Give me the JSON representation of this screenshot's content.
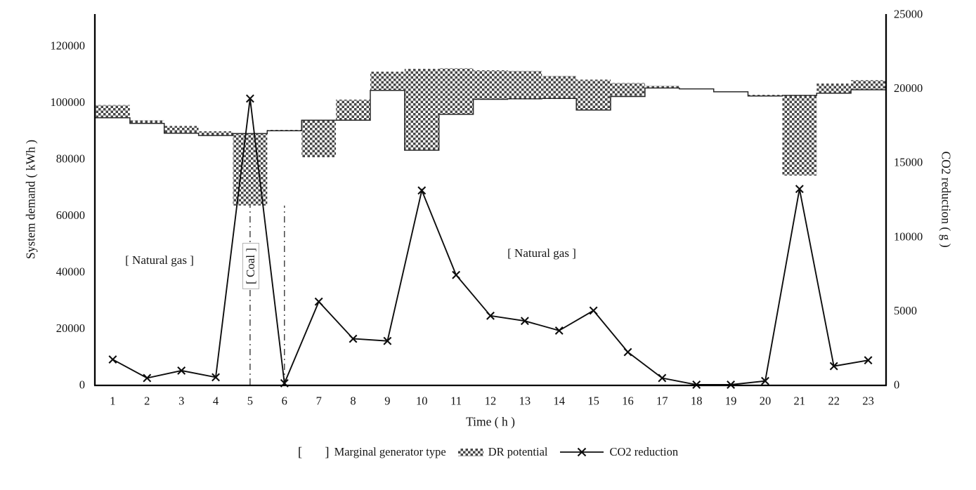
{
  "figure": {
    "background": "#ffffff",
    "ink_color": "#111111",
    "checker_color": "#474747"
  },
  "legend": {
    "bracket_open": "[",
    "bracket_close": "]",
    "items": [
      {
        "label": "Marginal generator type",
        "swatch": "brackets"
      },
      {
        "label": "DR potential",
        "swatch": "checker"
      },
      {
        "label": "CO2 reduction",
        "swatch": "line-x"
      }
    ]
  },
  "chart_data": {
    "type": "combo",
    "x": [
      1,
      2,
      3,
      4,
      5,
      6,
      7,
      8,
      9,
      10,
      11,
      12,
      13,
      14,
      15,
      16,
      17,
      18,
      19,
      20,
      21,
      22,
      23
    ],
    "x_axis": {
      "label": "Time ( h )",
      "ticks": [
        1,
        2,
        3,
        4,
        5,
        6,
        7,
        8,
        9,
        10,
        11,
        12,
        13,
        14,
        15,
        16,
        17,
        18,
        19,
        20,
        21,
        22,
        23
      ]
    },
    "left_axis": {
      "label": "System demand ( kWh )",
      "ticks": [
        0,
        20000,
        40000,
        60000,
        80000,
        100000,
        120000
      ],
      "range": [
        0,
        131200
      ],
      "grid": false
    },
    "right_axis": {
      "label": "CO2 reduction ( g )",
      "ticks": [
        0,
        5000,
        10000,
        15000,
        20000,
        25000
      ],
      "range": [
        0,
        25000
      ],
      "grid": false
    },
    "legend_position": "bottom",
    "series": [
      {
        "name": "System demand",
        "type": "step-line",
        "axis": "left",
        "values": [
          94500,
          92500,
          89000,
          88200,
          88900,
          89900,
          93600,
          93600,
          104200,
          83000,
          95700,
          101000,
          101200,
          101300,
          97200,
          102000,
          105000,
          104700,
          103700,
          102200,
          102400,
          103200,
          104400
        ]
      },
      {
        "name": "DR potential",
        "type": "range-bar",
        "axis": "left",
        "pattern": "checker",
        "ranges": [
          [
            94500,
            99000
          ],
          [
            92500,
            93600
          ],
          [
            89000,
            91600
          ],
          [
            88200,
            89700
          ],
          [
            63400,
            88900
          ],
          [
            89900,
            90200
          ],
          [
            80500,
            93600
          ],
          [
            93500,
            100900
          ],
          [
            104200,
            110800
          ],
          [
            83000,
            111800
          ],
          [
            95700,
            112000
          ],
          [
            101000,
            111300
          ],
          [
            101200,
            111100
          ],
          [
            101300,
            109300
          ],
          [
            97200,
            108000
          ],
          [
            102000,
            106800
          ],
          [
            105000,
            105800
          ],
          null,
          null,
          [
            102200,
            102600
          ],
          [
            74000,
            102400
          ],
          [
            103200,
            106600
          ],
          [
            104400,
            107800
          ]
        ]
      },
      {
        "name": "CO2 reduction",
        "type": "line",
        "axis": "right",
        "marker": "x",
        "values": [
          1700,
          450,
          950,
          500,
          19300,
          100,
          5600,
          3100,
          2950,
          13100,
          7400,
          4650,
          4300,
          3650,
          5000,
          2200,
          450,
          0,
          0,
          250,
          13200,
          1250,
          1650
        ]
      }
    ],
    "annotations": [
      {
        "id": "natural-gas-left",
        "text": "[ Natural gas ]",
        "x_hour": 2.36,
        "y_kwh": 44000
      },
      {
        "id": "coal",
        "text": "[ Coal ]",
        "x_hour": 5.02,
        "y_kwh": 42000,
        "boxed": true,
        "rotated": true
      },
      {
        "id": "natural-gas-right",
        "text": "[ Natural gas ]",
        "x_hour": 13.5,
        "y_kwh": 46500
      },
      {
        "id": "coal-region",
        "type": "vlines",
        "x_hours": [
          4.5,
          5.5
        ],
        "y_top_kwh": 63400,
        "style": "dash-dot"
      }
    ]
  }
}
